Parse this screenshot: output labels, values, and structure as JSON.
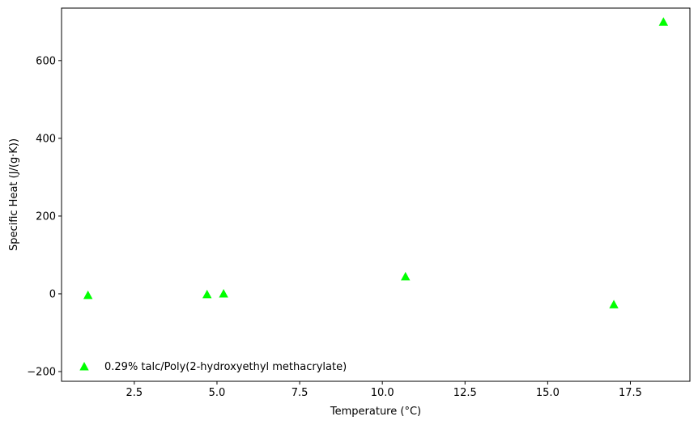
{
  "chart_data": {
    "type": "scatter",
    "title": "",
    "xlabel": "Temperature (°C)",
    "ylabel": "Specific Heat (J/(g·K))",
    "xlim": [
      0.3,
      19.3
    ],
    "ylim": [
      -225,
      735
    ],
    "x_ticks": [
      2.5,
      5.0,
      7.5,
      10.0,
      12.5,
      15.0,
      17.5
    ],
    "x_tick_labels": [
      "2.5",
      "5.0",
      "7.5",
      "10.0",
      "12.5",
      "15.0",
      "17.5"
    ],
    "y_ticks": [
      -200,
      0,
      200,
      400,
      600
    ],
    "y_tick_labels": [
      "−200",
      "0",
      "200",
      "400",
      "600"
    ],
    "grid": false,
    "legend_position": "lower-left",
    "series": [
      {
        "name": "0.29% talc/Poly(2-hydroxyethyl methacrylate)",
        "color": "#00ff00",
        "marker": "triangle-up",
        "points": [
          {
            "x": 1.1,
            "y": -4
          },
          {
            "x": 4.7,
            "y": -2
          },
          {
            "x": 5.2,
            "y": 0
          },
          {
            "x": 10.7,
            "y": 44
          },
          {
            "x": 17.0,
            "y": -28
          },
          {
            "x": 18.5,
            "y": 699
          }
        ]
      }
    ]
  }
}
